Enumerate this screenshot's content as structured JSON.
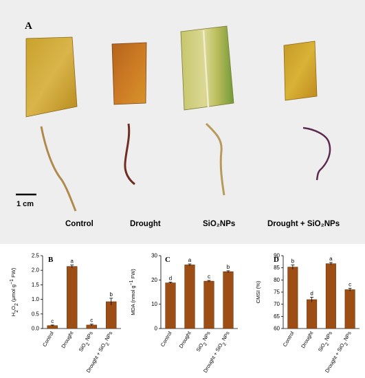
{
  "panel_a": {
    "letter": "A",
    "scale_bar_label": "1 cm",
    "treatments": [
      {
        "label": "Control"
      },
      {
        "label": "Drought"
      },
      {
        "label": "SiO₂NPs"
      },
      {
        "label": "Drought + SiO₂NPs"
      }
    ]
  },
  "colors": {
    "bar": "#9c4e14",
    "bar_edge": "#6b3208",
    "photo_bg": "#efeeee"
  },
  "chart_data": [
    {
      "type": "bar",
      "panel": "B",
      "categories": [
        "Control",
        "Drought",
        "SiO₂ NPs",
        "Drought + SiO₂ NPs"
      ],
      "values": [
        0.1,
        2.13,
        0.12,
        0.92
      ],
      "errors": [
        0.02,
        0.05,
        0.03,
        0.12
      ],
      "letters": [
        "c",
        "a",
        "c",
        "b"
      ],
      "ylabel": "H₂O₂ (μmol g⁻¹ FW)",
      "ylim": [
        0,
        2.5
      ],
      "yticks": [
        "0.0",
        "0.5",
        "1.0",
        "1.5",
        "2.0",
        "2.5"
      ]
    },
    {
      "type": "bar",
      "panel": "C",
      "categories": [
        "Control",
        "Drought",
        "SiO₂ NPs",
        "Drought + SiO₂ NPs"
      ],
      "values": [
        18.8,
        26.2,
        19.5,
        23.4
      ],
      "errors": [
        0.3,
        0.4,
        0.3,
        0.4
      ],
      "letters": [
        "d",
        "a",
        "c",
        "b"
      ],
      "ylabel": "MDA (nmol g⁻¹ FW)",
      "ylim": [
        0,
        30
      ],
      "yticks": [
        "0",
        "10",
        "20",
        "30"
      ]
    },
    {
      "type": "bar",
      "panel": "D",
      "categories": [
        "Control",
        "Drought",
        "SiO₂ NPs",
        "Drought + SiO₂ NPs"
      ],
      "values": [
        85.3,
        71.9,
        86.7,
        76.0
      ],
      "errors": [
        0.9,
        1.0,
        0.5,
        0.6
      ],
      "letters": [
        "b",
        "d",
        "a",
        "c"
      ],
      "ylabel": "CMSI (%)",
      "ylim": [
        60,
        90
      ],
      "yticks": [
        "60",
        "65",
        "70",
        "75",
        "80",
        "85",
        "90"
      ]
    }
  ]
}
